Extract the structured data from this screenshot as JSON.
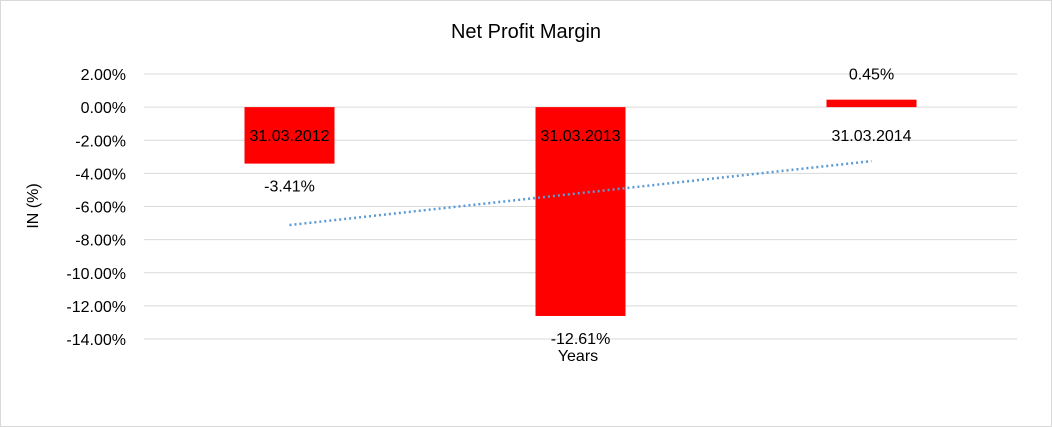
{
  "chart_data": {
    "type": "bar",
    "title": "Net Profit Margin",
    "xlabel": "Years",
    "ylabel": "IN (%)",
    "categories": [
      "31.03.2012",
      "31.03.2013",
      "31.03.2014"
    ],
    "series": [
      {
        "values": [
          -3.41,
          -12.61,
          0.45
        ],
        "data_labels": [
          "-3.41%",
          "-12.61%",
          "0.45%"
        ],
        "color": "#ff0000"
      }
    ],
    "yticks": [
      "2.00%",
      "0.00%",
      "-2.00%",
      "-4.00%",
      "-6.00%",
      "-8.00%",
      "-10.00%",
      "-12.00%",
      "-14.00%"
    ],
    "ylim": [
      -14,
      2
    ],
    "grid": true,
    "trendline": {
      "type": "linear",
      "style": "dotted",
      "color": "#5b9bd5"
    },
    "legend": "none"
  }
}
